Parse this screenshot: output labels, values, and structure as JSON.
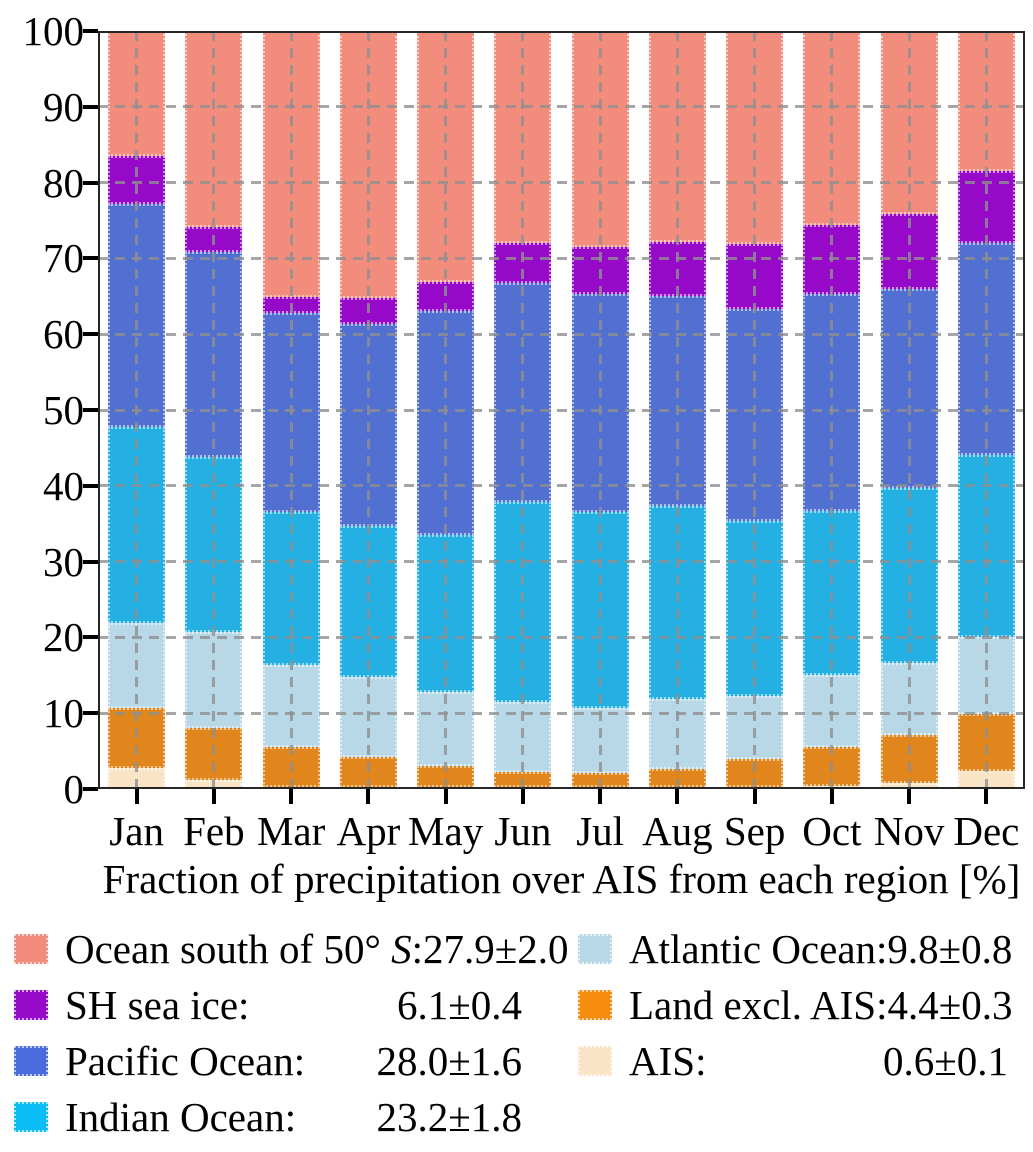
{
  "figure": {
    "xlabel": "Fraction of precipitation over AIS from each region [%]"
  },
  "chart_data": {
    "type": "bar",
    "stacked": true,
    "title": "",
    "xlabel": "Fraction of precipitation over AIS from each region [%]",
    "ylabel": "",
    "ylim": [
      0,
      100
    ],
    "yticks": [
      0,
      10,
      20,
      30,
      40,
      50,
      60,
      70,
      80,
      90,
      100
    ],
    "grid": "dashed gray, horizontal every 10 and vertical at each bar center, drawn above bars",
    "legend_position": "below chart, two columns",
    "categories": [
      "Jan",
      "Feb",
      "Mar",
      "Apr",
      "May",
      "Jun",
      "Jul",
      "Aug",
      "Sep",
      "Oct",
      "Nov",
      "Dec"
    ],
    "series": [
      {
        "name": "AIS",
        "color": "#FAE4C6",
        "annual_mean": "0.6±0.1",
        "values": [
          2.8,
          1.2,
          0.3,
          0.3,
          0.3,
          0.3,
          0.3,
          0.3,
          0.3,
          0.4,
          0.8,
          2.4
        ]
      },
      {
        "name": "Land excl. AIS",
        "color": "#E0861C",
        "annual_mean": "4.4±0.3",
        "values": [
          7.9,
          6.9,
          5.3,
          3.9,
          2.7,
          1.9,
          1.8,
          2.3,
          3.6,
          5.1,
          6.3,
          7.5
        ]
      },
      {
        "name": "Atlantic Ocean",
        "color": "#B8D8E7",
        "annual_mean": "9.8±0.8",
        "values": [
          11.2,
          12.6,
          10.7,
          10.6,
          9.8,
          9.3,
          8.6,
          9.3,
          8.4,
          9.5,
          9.5,
          10.1
        ]
      },
      {
        "name": "Indian Ocean",
        "color": "#24B0E2",
        "annual_mean": "23.2±1.8",
        "values": [
          25.9,
          23.1,
          20.3,
          19.9,
          20.7,
          26.4,
          25.9,
          25.4,
          23.0,
          21.7,
          23.1,
          24.1
        ]
      },
      {
        "name": "Pacific Ocean",
        "color": "#5170D2",
        "annual_mean": "28.0±1.6",
        "values": [
          29.4,
          27.0,
          26.2,
          26.7,
          29.5,
          28.9,
          28.7,
          27.7,
          28.0,
          28.6,
          26.3,
          27.9
        ]
      },
      {
        "name": "SH sea ice",
        "color": "#9609C9",
        "annual_mean": "6.1±0.4",
        "values": [
          6.3,
          3.4,
          2.1,
          3.4,
          3.9,
          5.2,
          6.2,
          7.1,
          8.6,
          9.1,
          9.9,
          9.5
        ]
      },
      {
        "name": "Ocean south of 50° S",
        "color": "#F28C7D",
        "annual_mean": "27.9±2.0",
        "values": [
          16.5,
          25.8,
          35.1,
          35.2,
          33.1,
          28.0,
          28.5,
          27.9,
          28.1,
          25.6,
          24.1,
          18.5
        ]
      }
    ]
  },
  "legend": {
    "columns": [
      {
        "entries": [
          {
            "pre": "Ocean south of 50° ",
            "it": "S",
            "post": ":",
            "value": "27.9±2.0",
            "color": "#F28C7D"
          },
          {
            "pre": "SH sea ice:",
            "it": "",
            "post": "",
            "value": "6.1±0.4",
            "color": "#9609C9"
          },
          {
            "pre": "Pacific Ocean:",
            "it": "",
            "post": "",
            "value": "28.0±1.6",
            "color": "#4A6BDC"
          },
          {
            "pre": "Indian Ocean:",
            "it": "",
            "post": "",
            "value": "23.2±1.8",
            "color": "#0ABDF7"
          }
        ]
      },
      {
        "entries": [
          {
            "pre": "Atlantic Ocean:",
            "it": "",
            "post": "",
            "value": "9.8±0.8",
            "color": "#B8D8E7"
          },
          {
            "pre": "Land excl. AIS:",
            "it": "",
            "post": "",
            "value": "4.4±0.3",
            "color": "#F68D10"
          },
          {
            "pre": "AIS:",
            "it": "",
            "post": "",
            "value": "0.6±0.1",
            "color": "#FAE4C6"
          }
        ]
      }
    ]
  }
}
